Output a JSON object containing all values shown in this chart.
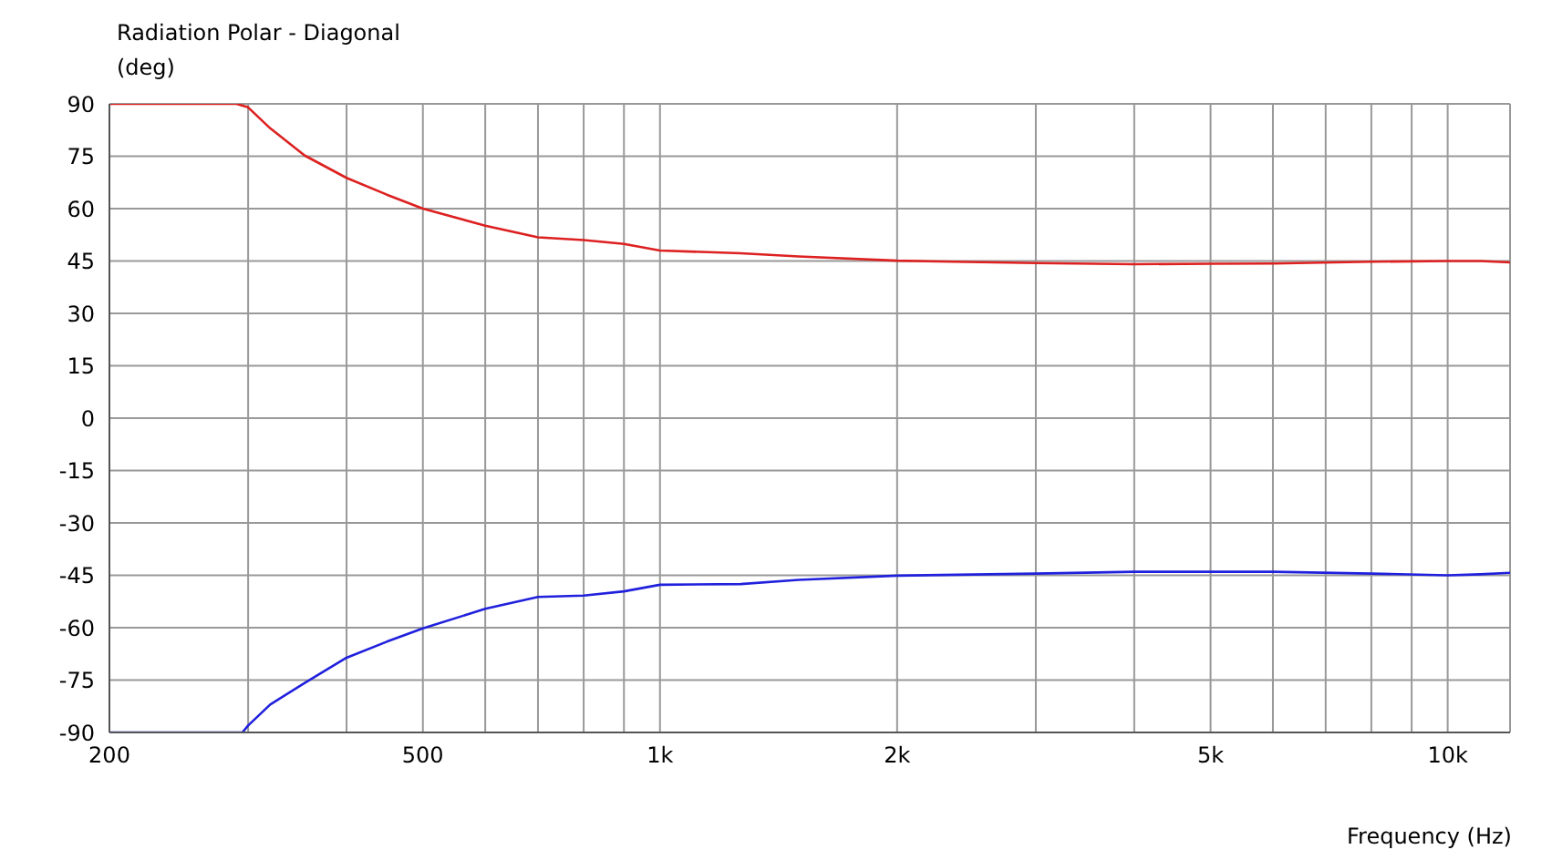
{
  "chart_data": {
    "type": "line",
    "title": "Radiation Polar - Diagonal",
    "ylabel": "(deg)",
    "xlabel": "Frequency  (Hz)",
    "log": "x",
    "grid": true,
    "legend": false,
    "marker": "none",
    "line_style": "solid",
    "xlim": [
      200,
      12000
    ],
    "xticks": [
      200,
      {
        "value": 300,
        "label": null
      },
      {
        "value": 400,
        "label": null
      },
      500,
      {
        "value": 600,
        "label": null
      },
      {
        "value": 700,
        "label": null
      },
      {
        "value": 800,
        "label": null
      },
      {
        "value": 900,
        "label": null
      },
      {
        "value": 1000,
        "label": "1k"
      },
      {
        "value": 2000,
        "label": "2k"
      },
      {
        "value": 3000,
        "label": null
      },
      {
        "value": 4000,
        "label": null
      },
      {
        "value": 5000,
        "label": "5k"
      },
      {
        "value": 6000,
        "label": null
      },
      {
        "value": 7000,
        "label": null
      },
      {
        "value": 8000,
        "label": null
      },
      {
        "value": 9000,
        "label": null
      },
      {
        "value": 10000,
        "label": "10k"
      }
    ],
    "ylim": [
      -90,
      90
    ],
    "yticks": [
      -90,
      -75,
      -60,
      -45,
      -30,
      -15,
      0,
      15,
      30,
      45,
      60,
      75,
      90
    ],
    "series": [
      {
        "color": "#dd2020",
        "x": [
          200,
          290,
          300,
          320,
          354,
          400,
          450,
          500,
          600,
          700,
          800,
          900,
          1000,
          1266,
          1500,
          2000,
          3000,
          4000,
          5000,
          6000,
          8000,
          10000,
          11000,
          12000
        ],
        "values": [
          90,
          90,
          89,
          83,
          75.2,
          68.8,
          64,
          60,
          55.1,
          51.8,
          51,
          49.9,
          48,
          47.2,
          46.3,
          45.1,
          44.4,
          44.1,
          44.2,
          44.3,
          44.8,
          45,
          45,
          44.6
        ]
      },
      {
        "color": "#2020dd",
        "x": [
          200,
          295,
          300,
          320,
          354,
          400,
          450,
          500,
          600,
          700,
          800,
          900,
          1000,
          1266,
          1500,
          2000,
          3000,
          4000,
          5000,
          6000,
          8000,
          10000,
          11000,
          12000
        ],
        "values": [
          -90,
          -90,
          -88,
          -82,
          -75.8,
          -68.6,
          -64,
          -60.2,
          -54.6,
          -51.2,
          -50.8,
          -49.6,
          -47.7,
          -47.5,
          -46.3,
          -45.1,
          -44.5,
          -44,
          -44,
          -44,
          -44.5,
          -45,
          -44.7,
          -44.3
        ]
      }
    ]
  }
}
